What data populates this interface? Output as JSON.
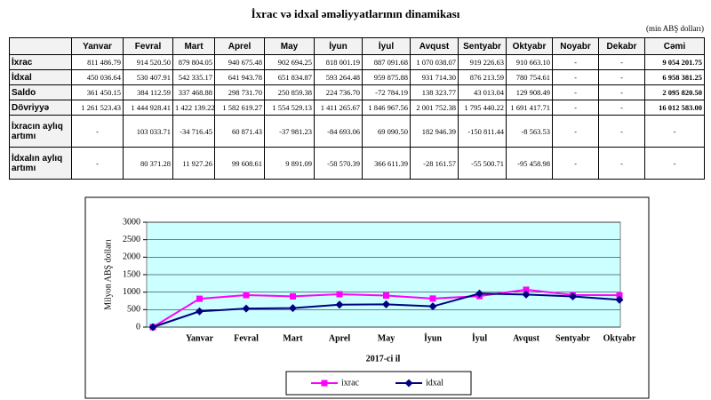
{
  "title": "İxrac və idxal əməliyyatlarının dinamikası",
  "unit": "(min ABŞ dolları)",
  "table": {
    "header": [
      "",
      "Yanvar",
      "Fevral",
      "Mart",
      "Aprel",
      "May",
      "İyun",
      "İyul",
      "Avqust",
      "Sentyabr",
      "Oktyabr",
      "Noyabr",
      "Dekabr",
      "Cəmi"
    ],
    "rows": [
      [
        "İxrac",
        "811 486.79",
        "914 520.50",
        "879 804.05",
        "940 675.48",
        "902 694.25",
        "818 001.19",
        "887 091.68",
        "1 070 038.07",
        "919 226.63",
        "910 663.10",
        "-",
        "-",
        "9 054 201.75"
      ],
      [
        "İdxal",
        "450 036.64",
        "530 407.91",
        "542 335.17",
        "641 943.78",
        "651 834.87",
        "593 264.48",
        "959 875.88",
        "931 714.30",
        "876 213.59",
        "780 754.61",
        "-",
        "-",
        "6 958 381.25"
      ],
      [
        "Saldo",
        "361 450.15",
        "384 112.59",
        "337 468.88",
        "298 731.70",
        "250 859.38",
        "224 736.70",
        "-72 784.19",
        "138 323.77",
        "43 013.04",
        "129 908.49",
        "-",
        "-",
        "2 095 820.50"
      ],
      [
        "Dövriyyə",
        "1 261 523.43",
        "1 444 928.41",
        "1 422 139.22",
        "1 582 619.27",
        "1 554 529.13",
        "1 411 265.67",
        "1 846 967.56",
        "2 001 752.38",
        "1 795 440.22",
        "1 691 417.71",
        "-",
        "-",
        "16 012 583.00"
      ],
      [
        "İxracın aylıq\nartımı",
        "-",
        "103 033.71",
        "-34 716.45",
        "60 871.43",
        "-37 981.23",
        "-84 693.06",
        "69 090.50",
        "182 946.39",
        "-150 811.44",
        "-8 563.53",
        "-",
        "-",
        "-"
      ],
      [
        "İdxalın aylıq\nartımı",
        "-",
        "80 371.28",
        "11 927.26",
        "99 608.61",
        "9 891.09",
        "-58 570.39",
        "366 611.39",
        "-28 161.57",
        "-55 500.71",
        "-95 458.98",
        "-",
        "-",
        "-"
      ]
    ]
  },
  "chart_data": {
    "type": "line",
    "x_label": "2017-ci il",
    "y_label": "Milyon ABŞ dolları",
    "categories": [
      null,
      "Yanvar",
      "Fevral",
      "Mart",
      "Aprel",
      "May",
      "İyun",
      "İyul",
      "Avqust",
      "Sentyabr",
      "Oktyabr"
    ],
    "series": [
      {
        "name": "ixrac",
        "color": "#ff00ff",
        "marker": "square",
        "values": [
          0,
          811.5,
          914.5,
          879.8,
          940.7,
          902.7,
          818.0,
          887.1,
          1070.0,
          919.2,
          910.7
        ]
      },
      {
        "name": "idxal",
        "color": "#000080",
        "marker": "diamond",
        "values": [
          0,
          450.0,
          530.4,
          542.3,
          641.9,
          651.8,
          593.3,
          959.9,
          931.7,
          876.2,
          780.8
        ]
      }
    ],
    "ylim": [
      0,
      3000
    ],
    "yticks": [
      0,
      500,
      1000,
      1500,
      2000,
      2500,
      3000
    ],
    "grid": true,
    "legend": "bottom"
  }
}
